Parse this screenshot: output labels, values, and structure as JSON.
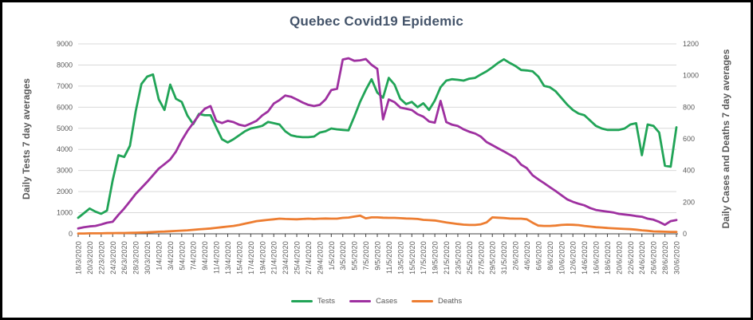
{
  "chart_data": {
    "type": "line",
    "title": "Quebec Covid19 Epidemic",
    "grid": true,
    "legend_position": "bottom",
    "text_colors": {
      "title": "#44546a",
      "axis_titles": "#595959",
      "tick_labels": "#595959",
      "axis_line": "#404040",
      "gridline": "#d9d9d9"
    },
    "y_left": {
      "label": "Daily Tests 7 day averages",
      "min": 0,
      "max": 9000,
      "step": 1000
    },
    "y_right": {
      "label": "Daily Cases and Deaths 7 day averages",
      "min": 0,
      "max": 1200,
      "step": 200
    },
    "x": {
      "start_date": "18/3/2020",
      "end_date": "30/6/2020",
      "tick_every_days": 2,
      "tick_labels": [
        "18/3/2020",
        "20/3/2020",
        "22/3/2020",
        "24/3/2020",
        "26/3/2020",
        "28/3/2020",
        "30/3/2020",
        "1/4/2020",
        "3/4/2020",
        "5/4/2020",
        "7/4/2020",
        "9/4/2020",
        "11/4/2020",
        "13/4/2020",
        "15/4/2020",
        "17/4/2020",
        "19/4/2020",
        "21/4/2020",
        "23/4/2020",
        "25/4/2020",
        "27/4/2020",
        "29/4/2020",
        "1/5/2020",
        "3/5/2020",
        "5/5/2020",
        "7/5/2020",
        "9/5/2020",
        "11/5/2020",
        "13/5/2020",
        "15/5/2020",
        "17/5/2020",
        "19/5/2020",
        "21/5/2020",
        "23/5/2020",
        "25/5/2020",
        "27/5/2020",
        "29/5/2020",
        "31/5/2020",
        "2/6/2020",
        "4/6/2020",
        "6/6/2020",
        "8/6/2020",
        "10/6/2020",
        "12/6/2020",
        "14/6/2020",
        "16/6/2020",
        "18/6/2020",
        "20/6/2020",
        "22/6/2020",
        "24/6/2020",
        "26/6/2020",
        "28/6/2020",
        "30/6/2020"
      ]
    },
    "series": [
      {
        "name": "Tests",
        "color": "#21a457",
        "axis": "left",
        "values": [
          760,
          980,
          1200,
          1050,
          950,
          1100,
          2540,
          3725,
          3640,
          4170,
          5800,
          7100,
          7450,
          7550,
          6375,
          5870,
          7070,
          6400,
          6250,
          5600,
          5200,
          5680,
          5620,
          5620,
          5050,
          4480,
          4330,
          4480,
          4670,
          4860,
          4990,
          5050,
          5115,
          5300,
          5240,
          5180,
          4860,
          4670,
          4610,
          4580,
          4580,
          4610,
          4800,
          4860,
          4990,
          4950,
          4925,
          4900,
          5555,
          6250,
          6820,
          7325,
          6690,
          6450,
          7390,
          7070,
          6400,
          6150,
          6250,
          6000,
          6185,
          5870,
          6315,
          6945,
          7260,
          7325,
          7300,
          7260,
          7350,
          7390,
          7550,
          7700,
          7890,
          8100,
          8270,
          8100,
          7955,
          7765,
          7740,
          7700,
          7450,
          7010,
          6945,
          6755,
          6440,
          6125,
          5870,
          5700,
          5620,
          5370,
          5115,
          4990,
          4925,
          4925,
          4925,
          4990,
          5180,
          5240,
          3725,
          5180,
          5115,
          4800,
          3220,
          3180,
          5050
        ]
      },
      {
        "name": "Cases",
        "color": "#9e30a0",
        "axis": "right",
        "values": [
          34,
          42,
          47,
          50,
          59,
          70,
          76,
          120,
          160,
          205,
          252,
          290,
          328,
          370,
          412,
          440,
          470,
          520,
          590,
          650,
          700,
          750,
          790,
          807,
          714,
          700,
          714,
          706,
          689,
          681,
          697,
          714,
          748,
          773,
          823,
          845,
          874,
          866,
          849,
          830,
          815,
          807,
          815,
          849,
          908,
          916,
          1101,
          1109,
          1093,
          1096,
          1104,
          1068,
          1042,
          723,
          849,
          832,
          798,
          790,
          782,
          756,
          740,
          710,
          702,
          840,
          706,
          689,
          681,
          660,
          645,
          634,
          614,
          580,
          560,
          540,
          521,
          500,
          479,
          437,
          415,
          370,
          344,
          320,
          295,
          270,
          244,
          218,
          202,
          190,
          180,
          163,
          151,
          145,
          140,
          135,
          126,
          122,
          118,
          112,
          108,
          96,
          89,
          75,
          57,
          80,
          87
        ]
      },
      {
        "name": "Deaths",
        "color": "#ed7d31",
        "axis": "right",
        "values": [
          2,
          2,
          3,
          3,
          3,
          4,
          4,
          5,
          5,
          6,
          7,
          8,
          9,
          11,
          13,
          14,
          16,
          18,
          20,
          22,
          25,
          28,
          31,
          34,
          38,
          42,
          46,
          50,
          56,
          64,
          72,
          80,
          84,
          88,
          92,
          96,
          94,
          93,
          92,
          94,
          96,
          94,
          96,
          97,
          96,
          96,
          101,
          103,
          109,
          115,
          98,
          104,
          104,
          102,
          101,
          101,
          99,
          97,
          96,
          94,
          88,
          86,
          84,
          78,
          72,
          67,
          62,
          58,
          56,
          56,
          60,
          72,
          104,
          102,
          100,
          97,
          96,
          96,
          92,
          70,
          52,
          50,
          50,
          52,
          56,
          58,
          57,
          55,
          50,
          46,
          42,
          40,
          37,
          35,
          33,
          31,
          29,
          26,
          22,
          19,
          15,
          14,
          13,
          12,
          12
        ]
      }
    ]
  }
}
